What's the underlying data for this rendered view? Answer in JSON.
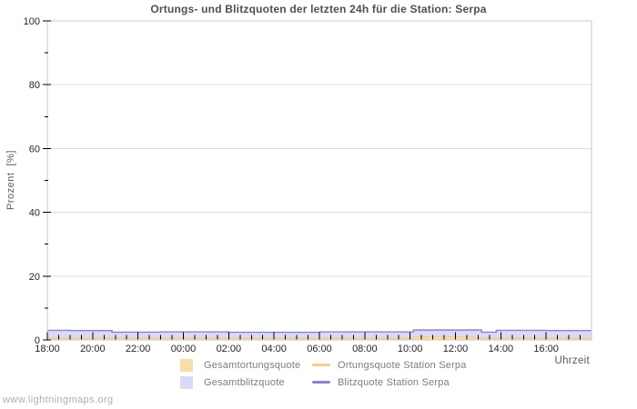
{
  "title": "Ortungs- und Blitzquoten der letzten 24h für die Station: Serpa",
  "watermark": "www.lightningmaps.org",
  "axes": {
    "y_label": "Prozent  [%]",
    "x_label": "Uhrzeit"
  },
  "legend": {
    "items": [
      {
        "label": "Gesamtortungsquote",
        "swatch": "area",
        "color": "#f9dda8"
      },
      {
        "label": "Gesamtblitzquote",
        "swatch": "area",
        "color": "#dadaf7"
      },
      {
        "label": "Ortungsquote Station Serpa",
        "swatch": "line",
        "color": "#f4cd88"
      },
      {
        "label": "Blitzquote Station Serpa",
        "swatch": "line",
        "color": "#8285d8"
      }
    ]
  },
  "chart_data": {
    "type": "area",
    "title": "Ortungs- und Blitzquoten der letzten 24h für die Station: Serpa",
    "xlabel": "Uhrzeit",
    "ylabel": "Prozent [%]",
    "x_unit": "hours since 18:00",
    "x_range": [
      0,
      24
    ],
    "ylim": [
      0,
      100
    ],
    "grid": "horizontal-only",
    "legend_position": "bottom",
    "y_major_ticks": [
      0,
      20,
      40,
      60,
      80,
      100
    ],
    "y_minor_ticks": [
      10,
      30,
      50,
      70,
      90
    ],
    "x_major_ticks": [
      {
        "hour": 0,
        "label": "18:00"
      },
      {
        "hour": 2,
        "label": "20:00"
      },
      {
        "hour": 4,
        "label": "22:00"
      },
      {
        "hour": 6,
        "label": "00:00"
      },
      {
        "hour": 8,
        "label": "02:00"
      },
      {
        "hour": 10,
        "label": "04:00"
      },
      {
        "hour": 12,
        "label": "06:00"
      },
      {
        "hour": 14,
        "label": "08:00"
      },
      {
        "hour": 16,
        "label": "10:00"
      },
      {
        "hour": 18,
        "label": "12:00"
      },
      {
        "hour": 20,
        "label": "14:00"
      },
      {
        "hour": 22,
        "label": "16:00"
      }
    ],
    "x_minor_tick_step_hours": 0.5,
    "series": [
      {
        "name": "Gesamtblitzquote",
        "style": "area",
        "color": "#dadaf7",
        "points": [
          [
            0,
            3.0
          ],
          [
            1.0,
            3.0
          ],
          [
            1.0,
            2.95
          ],
          [
            2.85,
            2.95
          ],
          [
            2.85,
            2.45
          ],
          [
            5,
            2.45
          ],
          [
            5,
            2.5
          ],
          [
            8,
            2.5
          ],
          [
            8,
            2.4
          ],
          [
            12,
            2.4
          ],
          [
            12,
            2.5
          ],
          [
            16.15,
            2.5
          ],
          [
            16.15,
            3.1
          ],
          [
            19.15,
            3.1
          ],
          [
            19.15,
            2.45
          ],
          [
            19.8,
            2.45
          ],
          [
            19.8,
            3.0
          ],
          [
            22,
            3.0
          ],
          [
            22,
            2.95
          ],
          [
            24,
            2.95
          ]
        ]
      },
      {
        "name": "Gesamtortungsquote",
        "style": "area",
        "color": "#f9dda8",
        "points": [
          [
            0,
            0.55
          ],
          [
            4,
            0.55
          ],
          [
            4,
            0.6
          ],
          [
            10,
            0.6
          ],
          [
            10,
            0.55
          ],
          [
            16.15,
            0.55
          ],
          [
            16.15,
            0.95
          ],
          [
            18.8,
            0.95
          ],
          [
            18.8,
            0.6
          ],
          [
            21,
            0.6
          ],
          [
            21,
            0.55
          ],
          [
            24,
            0.55
          ]
        ]
      },
      {
        "name": "Ortungsquote Station Serpa",
        "style": "line",
        "color": "#f4cd88",
        "points": [
          [
            0,
            0.55
          ],
          [
            4,
            0.55
          ],
          [
            4,
            0.6
          ],
          [
            10,
            0.6
          ],
          [
            10,
            0.55
          ],
          [
            16.15,
            0.55
          ],
          [
            16.15,
            0.95
          ],
          [
            18.8,
            0.95
          ],
          [
            18.8,
            0.6
          ],
          [
            21,
            0.6
          ],
          [
            21,
            0.55
          ],
          [
            24,
            0.55
          ]
        ]
      },
      {
        "name": "Blitzquote Station Serpa",
        "style": "line",
        "color": "#8285d8",
        "points": [
          [
            0,
            3.0
          ],
          [
            1.0,
            3.0
          ],
          [
            1.0,
            2.95
          ],
          [
            2.85,
            2.95
          ],
          [
            2.85,
            2.45
          ],
          [
            5,
            2.45
          ],
          [
            5,
            2.5
          ],
          [
            8,
            2.5
          ],
          [
            8,
            2.4
          ],
          [
            12,
            2.4
          ],
          [
            12,
            2.5
          ],
          [
            16.15,
            2.5
          ],
          [
            16.15,
            3.1
          ],
          [
            19.15,
            3.1
          ],
          [
            19.15,
            2.45
          ],
          [
            19.8,
            2.45
          ],
          [
            19.8,
            3.0
          ],
          [
            22,
            3.0
          ],
          [
            22,
            2.95
          ],
          [
            24,
            2.95
          ]
        ]
      }
    ],
    "colors": {
      "grid": "#dcdcdc",
      "border": "#c9c9c9",
      "tick": "#000000",
      "tick_label": "#262626"
    }
  }
}
